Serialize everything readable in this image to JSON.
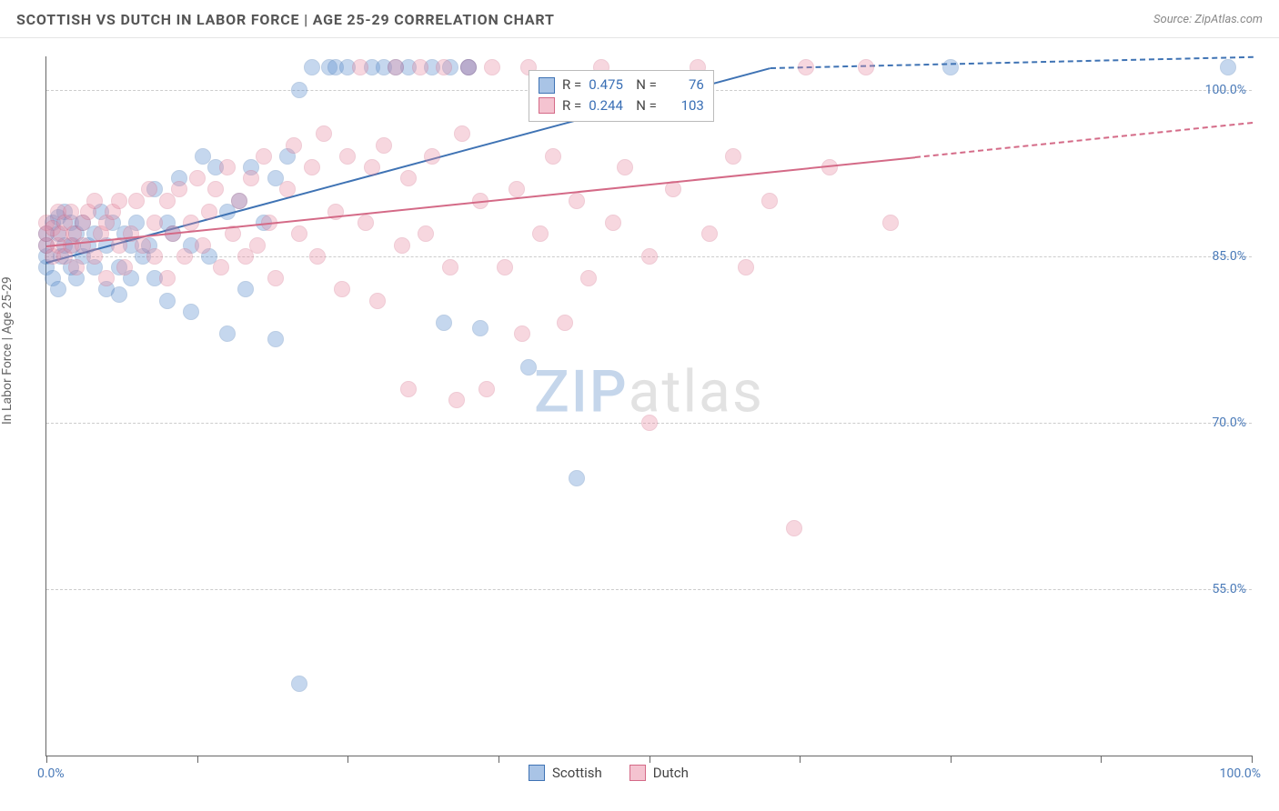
{
  "header": {
    "title": "SCOTTISH VS DUTCH IN LABOR FORCE | AGE 25-29 CORRELATION CHART",
    "source": "Source: ZipAtlas.com"
  },
  "chart": {
    "type": "scatter",
    "yaxis_title": "In Labor Force | Age 25-29",
    "watermark_a": "ZIP",
    "watermark_b": "atlas",
    "background_color": "#ffffff",
    "grid_color": "#cccccc",
    "axis_color": "#666666",
    "label_color": "#4a7ab8",
    "xlim": [
      0,
      100
    ],
    "ylim": [
      40,
      103
    ],
    "yticks": [
      55,
      70,
      85,
      100
    ],
    "ytick_labels": [
      "55.0%",
      "70.0%",
      "85.0%",
      "100.0%"
    ],
    "xticks": [
      0,
      12.5,
      25,
      37.5,
      50,
      62.5,
      75,
      87.5,
      100
    ],
    "xaxis_min_label": "0.0%",
    "xaxis_max_label": "100.0%",
    "marker_radius": 9,
    "marker_fill_opacity": 0.35,
    "marker_stroke_opacity": 0.9,
    "series": [
      {
        "name": "Scottish",
        "color": "#5b8fd0",
        "stroke": "#3f73b4",
        "regression": {
          "x1": 0,
          "y1": 84.5,
          "x2": 60,
          "y2": 102,
          "dashed_after_x": 60
        },
        "R": "0.475",
        "N": "76",
        "points": [
          [
            0,
            84
          ],
          [
            0,
            85
          ],
          [
            0,
            86
          ],
          [
            0,
            87
          ],
          [
            0.5,
            83
          ],
          [
            0.5,
            88
          ],
          [
            1,
            82
          ],
          [
            1,
            87
          ],
          [
            1,
            88.5
          ],
          [
            1.2,
            85
          ],
          [
            1.5,
            86
          ],
          [
            1.5,
            89
          ],
          [
            2,
            84
          ],
          [
            2,
            88
          ],
          [
            2.2,
            86
          ],
          [
            2.5,
            87
          ],
          [
            2.5,
            83
          ],
          [
            3,
            85
          ],
          [
            3,
            88
          ],
          [
            3.5,
            86
          ],
          [
            4,
            87
          ],
          [
            4,
            84
          ],
          [
            4.5,
            89
          ],
          [
            5,
            86
          ],
          [
            5,
            82
          ],
          [
            5.5,
            88
          ],
          [
            6,
            84
          ],
          [
            6,
            81.5
          ],
          [
            6.5,
            87
          ],
          [
            7,
            86
          ],
          [
            7,
            83
          ],
          [
            7.5,
            88
          ],
          [
            8,
            85
          ],
          [
            8.5,
            86
          ],
          [
            9,
            83
          ],
          [
            9,
            91
          ],
          [
            10,
            88
          ],
          [
            10,
            81
          ],
          [
            10.5,
            87
          ],
          [
            11,
            92
          ],
          [
            12,
            86
          ],
          [
            12,
            80
          ],
          [
            13,
            94
          ],
          [
            13.5,
            85
          ],
          [
            14,
            93
          ],
          [
            15,
            89
          ],
          [
            15,
            78
          ],
          [
            16,
            90
          ],
          [
            16.5,
            82
          ],
          [
            17,
            93
          ],
          [
            18,
            88
          ],
          [
            19,
            92
          ],
          [
            19,
            77.5
          ],
          [
            20,
            94
          ],
          [
            21,
            100
          ],
          [
            22,
            102
          ],
          [
            23.5,
            102
          ],
          [
            24,
            102
          ],
          [
            25,
            102
          ],
          [
            21,
            46.5
          ],
          [
            27,
            102
          ],
          [
            28,
            102
          ],
          [
            29,
            102
          ],
          [
            30,
            102
          ],
          [
            32,
            102
          ],
          [
            33.5,
            102
          ],
          [
            35,
            102
          ],
          [
            33,
            79
          ],
          [
            36,
            78.5
          ],
          [
            40,
            75
          ],
          [
            44,
            65
          ],
          [
            35,
            102
          ],
          [
            75,
            102
          ],
          [
            98,
            102
          ]
        ]
      },
      {
        "name": "Dutch",
        "color": "#e98fa6",
        "stroke": "#d46a87",
        "regression": {
          "x1": 0,
          "y1": 86,
          "x2": 72,
          "y2": 94,
          "dashed_after_x": 72
        },
        "R": "0.244",
        "N": "103",
        "points": [
          [
            0,
            86
          ],
          [
            0,
            87
          ],
          [
            0,
            88
          ],
          [
            0.5,
            85
          ],
          [
            0.5,
            87.5
          ],
          [
            1,
            86
          ],
          [
            1,
            89
          ],
          [
            1.2,
            87
          ],
          [
            1.5,
            85
          ],
          [
            1.5,
            88
          ],
          [
            2,
            86
          ],
          [
            2,
            89
          ],
          [
            2.3,
            87
          ],
          [
            2.5,
            84
          ],
          [
            3,
            88
          ],
          [
            3,
            86
          ],
          [
            3.5,
            89
          ],
          [
            4,
            85
          ],
          [
            4,
            90
          ],
          [
            4.5,
            87
          ],
          [
            5,
            88
          ],
          [
            5,
            83
          ],
          [
            5.5,
            89
          ],
          [
            6,
            86
          ],
          [
            6,
            90
          ],
          [
            6.5,
            84
          ],
          [
            7,
            87
          ],
          [
            7.5,
            90
          ],
          [
            8,
            86
          ],
          [
            8.5,
            91
          ],
          [
            9,
            85
          ],
          [
            9,
            88
          ],
          [
            10,
            90
          ],
          [
            10,
            83
          ],
          [
            10.5,
            87
          ],
          [
            11,
            91
          ],
          [
            11.5,
            85
          ],
          [
            12,
            88
          ],
          [
            12.5,
            92
          ],
          [
            13,
            86
          ],
          [
            13.5,
            89
          ],
          [
            14,
            91
          ],
          [
            14.5,
            84
          ],
          [
            15,
            93
          ],
          [
            15.5,
            87
          ],
          [
            16,
            90
          ],
          [
            16.5,
            85
          ],
          [
            17,
            92
          ],
          [
            17.5,
            86
          ],
          [
            18,
            94
          ],
          [
            18.5,
            88
          ],
          [
            19,
            83
          ],
          [
            20,
            91
          ],
          [
            20.5,
            95
          ],
          [
            21,
            87
          ],
          [
            22,
            93
          ],
          [
            22.5,
            85
          ],
          [
            23,
            96
          ],
          [
            24,
            89
          ],
          [
            24.5,
            82
          ],
          [
            25,
            94
          ],
          [
            26,
            102
          ],
          [
            26.5,
            88
          ],
          [
            27,
            93
          ],
          [
            27.5,
            81
          ],
          [
            28,
            95
          ],
          [
            29,
            102
          ],
          [
            29.5,
            86
          ],
          [
            30,
            92
          ],
          [
            30,
            73
          ],
          [
            31,
            102
          ],
          [
            31.5,
            87
          ],
          [
            32,
            94
          ],
          [
            33,
            102
          ],
          [
            33.5,
            84
          ],
          [
            34,
            72
          ],
          [
            34.5,
            96
          ],
          [
            35,
            102
          ],
          [
            36,
            90
          ],
          [
            36.5,
            73
          ],
          [
            37,
            102
          ],
          [
            38,
            84
          ],
          [
            39,
            91
          ],
          [
            39.5,
            78
          ],
          [
            40,
            102
          ],
          [
            41,
            87
          ],
          [
            42,
            94
          ],
          [
            43,
            79
          ],
          [
            44,
            90
          ],
          [
            45,
            83
          ],
          [
            46,
            102
          ],
          [
            47,
            88
          ],
          [
            48,
            93
          ],
          [
            50,
            85
          ],
          [
            50,
            70
          ],
          [
            52,
            91
          ],
          [
            54,
            102
          ],
          [
            55,
            87
          ],
          [
            57,
            94
          ],
          [
            58,
            84
          ],
          [
            60,
            90
          ],
          [
            62,
            60.5
          ],
          [
            63,
            102
          ],
          [
            65,
            93
          ],
          [
            68,
            102
          ],
          [
            70,
            88
          ]
        ]
      }
    ],
    "legend_stats": {
      "pos_left_pct": 40,
      "pos_top_pct": 2,
      "rows": [
        {
          "swatch_fill": "#a9c4e6",
          "swatch_stroke": "#3f73b4",
          "R_label": "R =",
          "R": "0.475",
          "N_label": "N =",
          "N": "76"
        },
        {
          "swatch_fill": "#f4c3d0",
          "swatch_stroke": "#d46a87",
          "R_label": "R =",
          "R": "0.244",
          "N_label": "N =",
          "N": "103"
        }
      ]
    },
    "bottom_legend": [
      {
        "label": "Scottish",
        "fill": "#a9c4e6",
        "stroke": "#3f73b4"
      },
      {
        "label": "Dutch",
        "fill": "#f4c3d0",
        "stroke": "#d46a87"
      }
    ]
  }
}
